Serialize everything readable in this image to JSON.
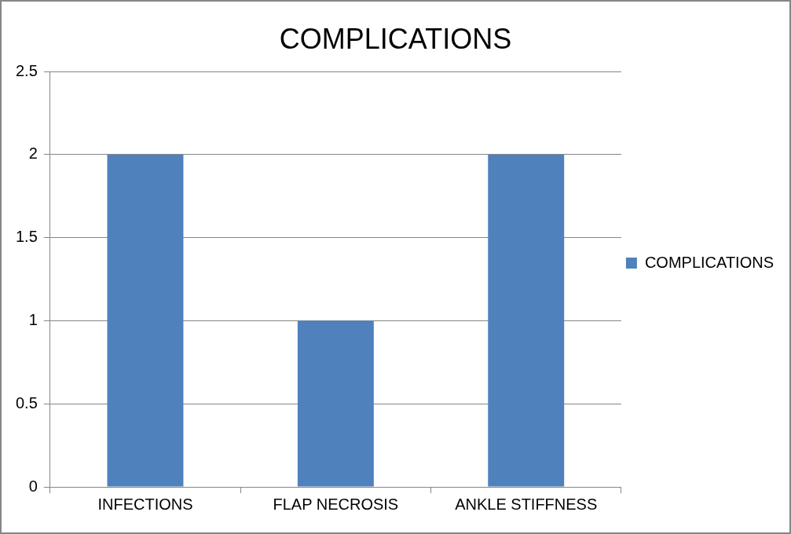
{
  "chart_data": {
    "type": "bar",
    "title": "COMPLICATIONS",
    "categories": [
      "INFECTIONS",
      "FLAP NECROSIS",
      "ANKLE STIFFNESS"
    ],
    "series": [
      {
        "name": "COMPLICATIONS",
        "color": "#4f81bd",
        "values": [
          2,
          1,
          2
        ]
      }
    ],
    "ylim": [
      0,
      2.5
    ],
    "yticks": [
      0,
      0.5,
      1,
      1.5,
      2,
      2.5
    ],
    "grid": "y",
    "legend": "right"
  }
}
